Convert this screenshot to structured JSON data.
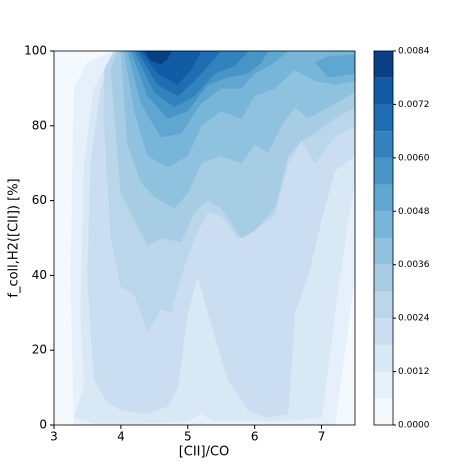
{
  "chart_data": {
    "type": "contourf",
    "xlabel": "[CII]/CO",
    "ylabel": "f_coll,H2([CII]) [%]",
    "xlim": [
      3,
      7.5
    ],
    "ylim": [
      0,
      100
    ],
    "xticks": [
      3,
      4,
      5,
      6,
      7
    ],
    "yticks": [
      0,
      20,
      40,
      60,
      80,
      100
    ],
    "levels": [
      0,
      0.0006,
      0.0012,
      0.0018,
      0.0024,
      0.003,
      0.0036,
      0.0042,
      0.0048,
      0.0054,
      0.006,
      0.0066,
      0.0072,
      0.0078,
      0.0084
    ],
    "colors": [
      "#f4f9fe",
      "#e6f0fa",
      "#d9e8f5",
      "#cbdef1",
      "#bad6eb",
      "#a6cde4",
      "#8fc2de",
      "#77b5d9",
      "#5fa6d1",
      "#4795c7",
      "#3282be",
      "#1f6eb3",
      "#115ca5",
      "#083f85"
    ],
    "cticks": [
      {
        "value": 0,
        "label": "0.0000"
      },
      {
        "value": 0.0012,
        "label": "0.0012"
      },
      {
        "value": 0.0024,
        "label": "0.0024"
      },
      {
        "value": 0.0036,
        "label": "0.0036"
      },
      {
        "value": 0.0048,
        "label": "0.0048"
      },
      {
        "value": 0.006,
        "label": "0.0060"
      },
      {
        "value": 0.0072,
        "label": "0.0072"
      },
      {
        "value": 0.0084,
        "label": "0.0084"
      }
    ],
    "contours": [
      [
        [
          [
            3,
            0
          ],
          [
            7.5,
            0
          ],
          [
            7.5,
            100
          ],
          [
            3,
            100
          ]
        ]
      ],
      [
        [
          [
            3.3,
            0
          ],
          [
            7.2,
            0
          ],
          [
            7.5,
            40
          ],
          [
            7.5,
            100
          ],
          [
            3.9,
            100
          ],
          [
            3.5,
            97
          ],
          [
            3.3,
            90
          ],
          [
            3.25,
            40
          ]
        ]
      ],
      [
        [
          [
            3.3,
            2
          ],
          [
            3.6,
            0.5
          ],
          [
            4.3,
            0.5
          ],
          [
            5.0,
            1
          ],
          [
            5.2,
            3
          ],
          [
            5.4,
            1
          ],
          [
            6.4,
            1
          ],
          [
            7.0,
            2
          ],
          [
            7.2,
            30
          ],
          [
            7.4,
            55
          ],
          [
            7.5,
            65
          ],
          [
            7.5,
            100
          ],
          [
            3.9,
            100
          ],
          [
            3.6,
            90
          ],
          [
            3.45,
            70
          ],
          [
            3.4,
            30
          ],
          [
            3.45,
            10
          ]
        ]
      ],
      [
        [
          [
            3.6,
            12
          ],
          [
            3.8,
            6
          ],
          [
            4.0,
            4
          ],
          [
            4.4,
            3
          ],
          [
            4.7,
            5
          ],
          [
            4.85,
            10
          ],
          [
            5.0,
            30
          ],
          [
            5.15,
            40
          ],
          [
            5.3,
            30
          ],
          [
            5.6,
            12
          ],
          [
            5.9,
            4
          ],
          [
            6.2,
            2
          ],
          [
            6.5,
            3
          ],
          [
            6.6,
            30
          ],
          [
            6.8,
            40
          ],
          [
            7.0,
            55
          ],
          [
            7.2,
            68
          ],
          [
            7.5,
            72
          ],
          [
            7.5,
            100
          ],
          [
            3.9,
            100
          ],
          [
            3.7,
            90
          ],
          [
            3.55,
            70
          ],
          [
            3.5,
            40
          ]
        ]
      ],
      [
        [
          [
            3.75,
            80
          ],
          [
            3.85,
            50
          ],
          [
            4.0,
            37
          ],
          [
            4.2,
            35
          ],
          [
            4.4,
            25
          ],
          [
            4.6,
            31
          ],
          [
            4.75,
            30
          ],
          [
            4.9,
            40
          ],
          [
            5.1,
            50
          ],
          [
            5.3,
            57
          ],
          [
            5.5,
            56
          ],
          [
            5.75,
            50
          ],
          [
            6.0,
            52
          ],
          [
            6.3,
            56
          ],
          [
            6.5,
            70
          ],
          [
            6.7,
            76
          ],
          [
            6.9,
            70
          ],
          [
            7.2,
            77
          ],
          [
            7.5,
            80
          ],
          [
            7.5,
            100
          ],
          [
            3.9,
            100
          ],
          [
            3.75,
            95
          ]
        ]
      ],
      [
        [
          [
            3.85,
            95
          ],
          [
            4.0,
            62
          ],
          [
            4.2,
            55
          ],
          [
            4.4,
            48
          ],
          [
            4.6,
            50
          ],
          [
            4.9,
            49
          ],
          [
            5.1,
            57
          ],
          [
            5.3,
            60
          ],
          [
            5.5,
            58
          ],
          [
            5.8,
            50
          ],
          [
            6.0,
            52
          ],
          [
            6.3,
            58
          ],
          [
            6.5,
            72
          ],
          [
            6.7,
            76
          ],
          [
            6.9,
            78
          ],
          [
            7.2,
            82
          ],
          [
            7.5,
            85
          ],
          [
            7.5,
            100
          ],
          [
            3.95,
            100
          ]
        ]
      ],
      [
        [
          [
            4.0,
            100
          ],
          [
            4.1,
            75
          ],
          [
            4.3,
            65
          ],
          [
            4.5,
            61
          ],
          [
            4.8,
            58
          ],
          [
            5.0,
            62
          ],
          [
            5.2,
            70
          ],
          [
            5.5,
            72
          ],
          [
            5.8,
            70
          ],
          [
            6.0,
            75
          ],
          [
            6.2,
            73
          ],
          [
            6.4,
            80
          ],
          [
            6.6,
            85
          ],
          [
            6.8,
            82
          ],
          [
            7.1,
            85
          ],
          [
            7.5,
            89
          ],
          [
            7.5,
            100
          ]
        ]
      ],
      [
        [
          [
            4.05,
            100
          ],
          [
            4.2,
            84
          ],
          [
            4.4,
            72
          ],
          [
            4.7,
            69
          ],
          [
            5.0,
            72
          ],
          [
            5.2,
            80
          ],
          [
            5.5,
            84
          ],
          [
            5.8,
            82
          ],
          [
            6.0,
            88
          ],
          [
            6.3,
            90
          ],
          [
            6.6,
            95
          ],
          [
            6.9,
            92
          ],
          [
            7.2,
            91
          ],
          [
            7.5,
            92
          ],
          [
            7.5,
            100
          ]
        ]
      ],
      [
        [
          [
            4.1,
            100
          ],
          [
            4.3,
            86
          ],
          [
            4.6,
            77
          ],
          [
            4.9,
            78
          ],
          [
            5.2,
            86
          ],
          [
            5.5,
            90
          ],
          [
            5.8,
            90
          ],
          [
            6.0,
            94
          ],
          [
            6.3,
            97
          ],
          [
            6.5,
            100
          ]
        ],
        [
          [
            6.9,
            97
          ],
          [
            7.1,
            93
          ],
          [
            7.5,
            94
          ],
          [
            7.5,
            99
          ],
          [
            7.1,
            98.5
          ]
        ]
      ],
      [
        [
          [
            4.15,
            100
          ],
          [
            4.4,
            88
          ],
          [
            4.7,
            82
          ],
          [
            5.0,
            84
          ],
          [
            5.3,
            91
          ],
          [
            5.6,
            93
          ],
          [
            5.9,
            94
          ],
          [
            6.1,
            97
          ],
          [
            6.2,
            100
          ]
        ]
      ],
      [
        [
          [
            4.2,
            100
          ],
          [
            4.5,
            89
          ],
          [
            4.8,
            85
          ],
          [
            5.1,
            88
          ],
          [
            5.4,
            94
          ],
          [
            5.7,
            96
          ],
          [
            5.9,
            100
          ]
        ]
      ],
      [
        [
          [
            4.25,
            100
          ],
          [
            4.55,
            91
          ],
          [
            4.85,
            88
          ],
          [
            5.1,
            92
          ],
          [
            5.3,
            96
          ],
          [
            5.5,
            100
          ]
        ]
      ],
      [
        [
          [
            4.3,
            100
          ],
          [
            4.55,
            94
          ],
          [
            4.85,
            91
          ],
          [
            5.05,
            95
          ],
          [
            5.2,
            100
          ]
        ]
      ],
      [
        [
          [
            4.35,
            100
          ],
          [
            4.45,
            97.5
          ],
          [
            4.6,
            96.5
          ],
          [
            4.7,
            98
          ],
          [
            4.75,
            100
          ]
        ]
      ]
    ]
  }
}
